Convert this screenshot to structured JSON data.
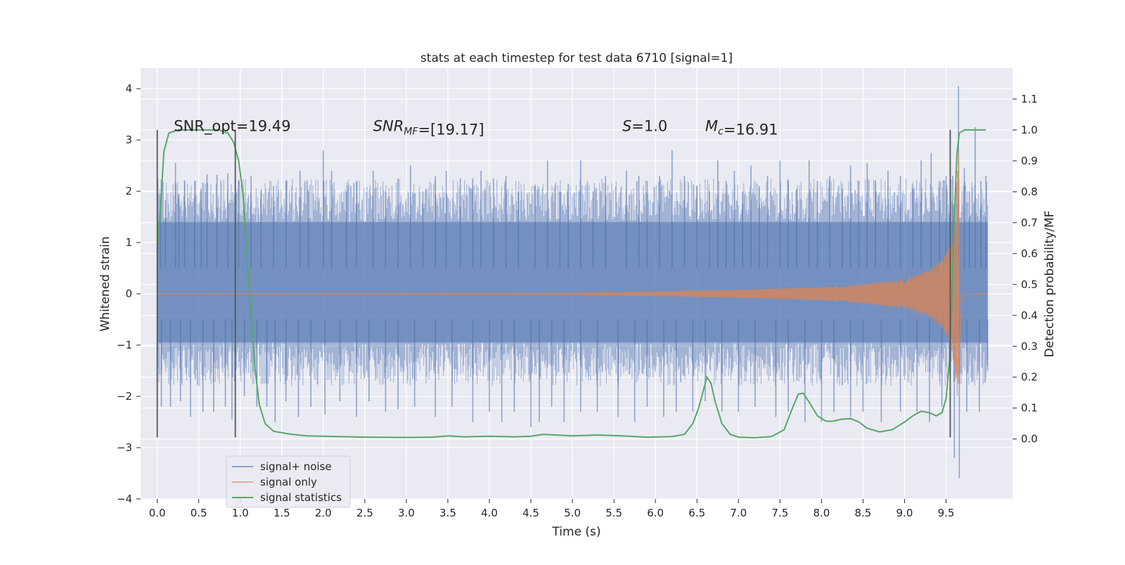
{
  "chart_data": {
    "type": "line",
    "title": "stats at each timestep for test data 6710 [signal=1]",
    "xlabel": "Time (s)",
    "ylabel": "Whitened strain",
    "y2label": "Detection probability/MF",
    "xlim": [
      -0.2,
      10.3
    ],
    "ylim": [
      -4.0,
      4.4
    ],
    "y2lim": [
      -0.194,
      1.2
    ],
    "x_ticks": [
      "0.0",
      "0.5",
      "1.0",
      "1.5",
      "2.0",
      "2.5",
      "3.0",
      "3.5",
      "4.0",
      "4.5",
      "5.0",
      "5.5",
      "6.0",
      "6.5",
      "7.0",
      "7.5",
      "8.0",
      "8.5",
      "9.0",
      "9.5"
    ],
    "x_tick_values": [
      0,
      0.5,
      1,
      1.5,
      2,
      2.5,
      3,
      3.5,
      4,
      4.5,
      5,
      5.5,
      6,
      6.5,
      7,
      7.5,
      8,
      8.5,
      9,
      9.5
    ],
    "y_ticks": [
      "4",
      "3",
      "2",
      "1",
      "0",
      "−1",
      "−2",
      "−3",
      "−4"
    ],
    "y_tick_values": [
      4,
      3,
      2,
      1,
      0,
      -1,
      -2,
      -3,
      -4
    ],
    "y2_ticks": [
      "1.1",
      "1.0",
      "0.9",
      "0.8",
      "0.7",
      "0.6",
      "0.5",
      "0.4",
      "0.3",
      "0.2",
      "0.1",
      "0.0"
    ],
    "y2_tick_values": [
      1.1,
      1.0,
      0.9,
      0.8,
      0.7,
      0.6,
      0.5,
      0.4,
      0.3,
      0.2,
      0.1,
      0.0
    ],
    "grid": true,
    "legend_position": "bottom-left",
    "colors": {
      "noise": "#4c72b0",
      "signal": "#dd8452",
      "stats": "#55a868",
      "marker": "#555555",
      "background": "#eaeaf2"
    },
    "annotations": [
      {
        "parts": [
          {
            "t": "SNR_opt=19.49"
          }
        ],
        "x": 0.2,
        "y": 3.2
      },
      {
        "parts": [
          {
            "t": "SNR",
            "i": true
          },
          {
            "t": "MF",
            "i": true,
            "sub": true
          },
          {
            "t": "=[19.17]"
          }
        ],
        "x": 2.6,
        "y": 3.2
      },
      {
        "parts": [
          {
            "t": "S",
            "i": true
          },
          {
            "t": "=1.0"
          }
        ],
        "x": 5.6,
        "y": 3.2
      },
      {
        "parts": [
          {
            "t": "M",
            "i": true
          },
          {
            "t": "c",
            "i": true,
            "sub": true
          },
          {
            "t": "=16.91"
          }
        ],
        "x": 6.6,
        "y": 3.2
      }
    ],
    "markers": [
      {
        "x": 0.0,
        "y": [
          -2.8,
          3.2
        ]
      },
      {
        "x": 0.94,
        "y": [
          -2.8,
          3.2
        ]
      },
      {
        "x": 9.55,
        "y": [
          -2.8,
          3.2
        ]
      }
    ],
    "series": [
      {
        "name": "signal+ noise",
        "style": "noise-band",
        "x_range": [
          0.0,
          10.0
        ],
        "band_core": [
          -0.95,
          1.4
        ],
        "peaks": [
          [
            0.04,
            1.8
          ],
          [
            0.1,
            1.82
          ],
          [
            0.22,
            2.55
          ],
          [
            0.26,
            1.95
          ],
          [
            0.33,
            2.2
          ],
          [
            0.45,
            2.2
          ],
          [
            0.53,
            2.05
          ],
          [
            0.6,
            2.33
          ],
          [
            0.72,
            2.32
          ],
          [
            0.85,
            2.35
          ],
          [
            0.98,
            2.2
          ],
          [
            1.13,
            2.3
          ],
          [
            1.25,
            2.02
          ],
          [
            1.4,
            2.1
          ],
          [
            1.55,
            2.2
          ],
          [
            1.72,
            2.4
          ],
          [
            1.82,
            2.0
          ],
          [
            2.0,
            2.8
          ],
          [
            2.1,
            2.4
          ],
          [
            2.28,
            2.0
          ],
          [
            2.4,
            2.2
          ],
          [
            2.6,
            2.4
          ],
          [
            2.75,
            2.0
          ],
          [
            2.9,
            2.25
          ],
          [
            3.05,
            2.5
          ],
          [
            3.2,
            2.0
          ],
          [
            3.35,
            2.3
          ],
          [
            3.48,
            2.4
          ],
          [
            3.65,
            2.25
          ],
          [
            3.8,
            2.25
          ],
          [
            3.9,
            2.4
          ],
          [
            4.05,
            2.25
          ],
          [
            4.2,
            2.3
          ],
          [
            4.35,
            2.0
          ],
          [
            4.55,
            2.1
          ],
          [
            4.7,
            2.6
          ],
          [
            4.85,
            2.0
          ],
          [
            4.95,
            2.15
          ],
          [
            5.1,
            2.6
          ],
          [
            5.25,
            2.0
          ],
          [
            5.4,
            2.3
          ],
          [
            5.65,
            2.4
          ],
          [
            5.8,
            2.3
          ],
          [
            5.9,
            2.2
          ],
          [
            6.05,
            2.3
          ],
          [
            6.2,
            2.8
          ],
          [
            6.35,
            2.3
          ],
          [
            6.5,
            2.1
          ],
          [
            6.65,
            2.0
          ],
          [
            6.75,
            2.6
          ],
          [
            6.85,
            2.2
          ],
          [
            6.95,
            2.4
          ],
          [
            7.05,
            2.0
          ],
          [
            7.15,
            2.5
          ],
          [
            7.25,
            2.1
          ],
          [
            7.35,
            2.3
          ],
          [
            7.5,
            2.6
          ],
          [
            7.6,
            2.2
          ],
          [
            7.7,
            2.05
          ],
          [
            7.85,
            2.6
          ],
          [
            7.95,
            2.2
          ],
          [
            8.1,
            2.3
          ],
          [
            8.25,
            2.05
          ],
          [
            8.35,
            2.5
          ],
          [
            8.45,
            2.2
          ],
          [
            8.55,
            2.55
          ],
          [
            8.65,
            2.2
          ],
          [
            8.8,
            2.4
          ],
          [
            8.95,
            2.3
          ],
          [
            9.1,
            2.05
          ],
          [
            9.2,
            2.6
          ],
          [
            9.32,
            2.75
          ],
          [
            9.42,
            2.2
          ],
          [
            9.5,
            2.3
          ],
          [
            9.58,
            2.3
          ],
          [
            9.65,
            4.05
          ],
          [
            9.72,
            2.45
          ],
          [
            9.78,
            2.0
          ],
          [
            9.85,
            3.25
          ],
          [
            9.92,
            2.2
          ],
          [
            9.98,
            2.3
          ]
        ],
        "troughs": [
          [
            0.05,
            -2.2
          ],
          [
            0.16,
            -2.2
          ],
          [
            0.28,
            -2.1
          ],
          [
            0.4,
            -2.4
          ],
          [
            0.55,
            -2.3
          ],
          [
            0.68,
            -2.3
          ],
          [
            0.82,
            -2.2
          ],
          [
            0.9,
            -2.45
          ],
          [
            1.05,
            -2.0
          ],
          [
            1.2,
            -2.2
          ],
          [
            1.32,
            -2.2
          ],
          [
            1.42,
            -2.5
          ],
          [
            1.55,
            -2.1
          ],
          [
            1.7,
            -2.4
          ],
          [
            1.85,
            -2.2
          ],
          [
            2.02,
            -2.35
          ],
          [
            2.2,
            -2.1
          ],
          [
            2.4,
            -2.4
          ],
          [
            2.55,
            -2.1
          ],
          [
            2.75,
            -2.3
          ],
          [
            2.9,
            -2.25
          ],
          [
            3.1,
            -2.2
          ],
          [
            3.35,
            -2.4
          ],
          [
            3.55,
            -2.2
          ],
          [
            3.8,
            -2.5
          ],
          [
            4.0,
            -2.3
          ],
          [
            4.15,
            -2.5
          ],
          [
            4.3,
            -2.3
          ],
          [
            4.5,
            -2.6
          ],
          [
            4.6,
            -2.5
          ],
          [
            4.75,
            -2.2
          ],
          [
            4.9,
            -2.5
          ],
          [
            5.1,
            -2.3
          ],
          [
            5.3,
            -2.3
          ],
          [
            5.55,
            -2.4
          ],
          [
            5.75,
            -2.5
          ],
          [
            5.9,
            -2.2
          ],
          [
            6.1,
            -2.4
          ],
          [
            6.25,
            -2.3
          ],
          [
            6.45,
            -2.3
          ],
          [
            6.6,
            -2.1
          ],
          [
            6.8,
            -2.3
          ],
          [
            7.0,
            -2.3
          ],
          [
            7.2,
            -2.2
          ],
          [
            7.45,
            -2.4
          ],
          [
            7.6,
            -2.3
          ],
          [
            7.8,
            -2.5
          ],
          [
            8.0,
            -2.5
          ],
          [
            8.15,
            -2.3
          ],
          [
            8.35,
            -2.4
          ],
          [
            8.5,
            -2.3
          ],
          [
            8.72,
            -2.5
          ],
          [
            8.95,
            -2.3
          ],
          [
            9.15,
            -2.3
          ],
          [
            9.3,
            -2.5
          ],
          [
            9.45,
            -2.2
          ],
          [
            9.6,
            -3.2
          ],
          [
            9.66,
            -3.6
          ],
          [
            9.75,
            -2.3
          ],
          [
            9.9,
            -2.3
          ],
          [
            10.0,
            -1.5
          ]
        ]
      },
      {
        "name": "signal only",
        "style": "chirp",
        "x_range": [
          0.0,
          10.0
        ],
        "merger_time": 9.65,
        "envelope": [
          [
            0.0,
            0.0
          ],
          [
            5.0,
            0.01
          ],
          [
            6.0,
            0.04
          ],
          [
            7.0,
            0.08
          ],
          [
            8.0,
            0.13
          ],
          [
            8.5,
            0.19
          ],
          [
            9.0,
            0.29
          ],
          [
            9.3,
            0.46
          ],
          [
            9.45,
            0.67
          ],
          [
            9.55,
            0.95
          ],
          [
            9.62,
            1.6
          ],
          [
            9.65,
            3.1
          ],
          [
            9.67,
            1.0
          ],
          [
            9.7,
            0.03
          ],
          [
            10.0,
            0.0
          ]
        ]
      },
      {
        "name": "signal statistics",
        "style": "line",
        "axis": "right",
        "points": [
          [
            0.0,
            0.6
          ],
          [
            0.04,
            0.75
          ],
          [
            0.08,
            0.93
          ],
          [
            0.14,
            0.99
          ],
          [
            0.25,
            1.0
          ],
          [
            0.5,
            1.0
          ],
          [
            0.75,
            1.0
          ],
          [
            0.85,
            0.99
          ],
          [
            0.92,
            0.96
          ],
          [
            0.98,
            0.9
          ],
          [
            1.03,
            0.8
          ],
          [
            1.08,
            0.6
          ],
          [
            1.13,
            0.4
          ],
          [
            1.18,
            0.22
          ],
          [
            1.23,
            0.11
          ],
          [
            1.3,
            0.05
          ],
          [
            1.4,
            0.025
          ],
          [
            1.6,
            0.016
          ],
          [
            1.8,
            0.01
          ],
          [
            2.0,
            0.009
          ],
          [
            2.5,
            0.006
          ],
          [
            3.0,
            0.005
          ],
          [
            3.3,
            0.006
          ],
          [
            3.5,
            0.01
          ],
          [
            3.7,
            0.007
          ],
          [
            4.0,
            0.009
          ],
          [
            4.3,
            0.007
          ],
          [
            4.5,
            0.009
          ],
          [
            4.65,
            0.015
          ],
          [
            4.8,
            0.013
          ],
          [
            5.0,
            0.01
          ],
          [
            5.3,
            0.013
          ],
          [
            5.6,
            0.01
          ],
          [
            5.9,
            0.006
          ],
          [
            6.2,
            0.008
          ],
          [
            6.35,
            0.015
          ],
          [
            6.45,
            0.05
          ],
          [
            6.52,
            0.1
          ],
          [
            6.58,
            0.16
          ],
          [
            6.62,
            0.2
          ],
          [
            6.67,
            0.18
          ],
          [
            6.72,
            0.12
          ],
          [
            6.8,
            0.05
          ],
          [
            6.9,
            0.015
          ],
          [
            7.0,
            0.006
          ],
          [
            7.2,
            0.004
          ],
          [
            7.4,
            0.008
          ],
          [
            7.55,
            0.03
          ],
          [
            7.65,
            0.1
          ],
          [
            7.72,
            0.145
          ],
          [
            7.78,
            0.148
          ],
          [
            7.85,
            0.12
          ],
          [
            7.95,
            0.075
          ],
          [
            8.05,
            0.058
          ],
          [
            8.12,
            0.057
          ],
          [
            8.25,
            0.064
          ],
          [
            8.35,
            0.066
          ],
          [
            8.45,
            0.055
          ],
          [
            8.55,
            0.035
          ],
          [
            8.7,
            0.023
          ],
          [
            8.85,
            0.03
          ],
          [
            9.0,
            0.055
          ],
          [
            9.1,
            0.075
          ],
          [
            9.2,
            0.09
          ],
          [
            9.3,
            0.085
          ],
          [
            9.38,
            0.075
          ],
          [
            9.45,
            0.085
          ],
          [
            9.5,
            0.13
          ],
          [
            9.54,
            0.25
          ],
          [
            9.57,
            0.45
          ],
          [
            9.6,
            0.72
          ],
          [
            9.63,
            0.92
          ],
          [
            9.66,
            0.99
          ],
          [
            9.72,
            1.0
          ],
          [
            9.85,
            1.0
          ],
          [
            9.98,
            1.0
          ]
        ]
      }
    ]
  }
}
